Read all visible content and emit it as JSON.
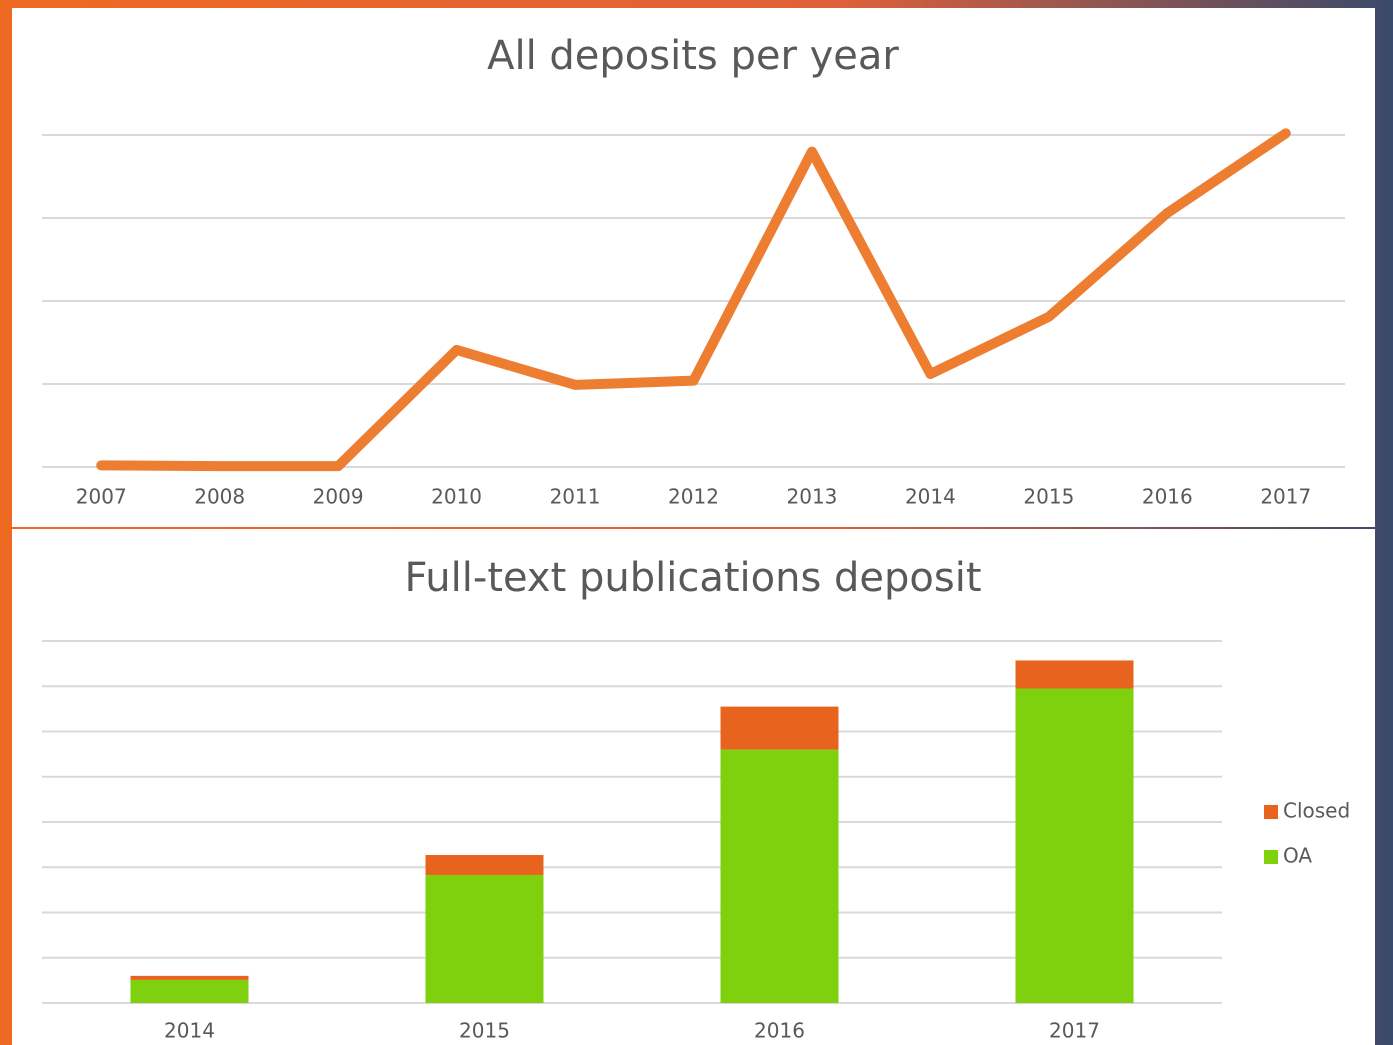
{
  "chart_data": [
    {
      "type": "line",
      "title": "All deposits per year",
      "categories": [
        "2007",
        "2008",
        "2009",
        "2010",
        "2011",
        "2012",
        "2013",
        "2014",
        "2015",
        "2016",
        "2017"
      ],
      "values": [
        0.02,
        0.01,
        0.01,
        1.41,
        0.99,
        1.04,
        3.8,
        1.12,
        1.81,
        3.06,
        4.02
      ],
      "color": "#ed7d31",
      "ylim": [
        0,
        4.1
      ],
      "gridlines": [
        0,
        1,
        2,
        3,
        4
      ]
    },
    {
      "type": "stacked-bar",
      "title": "Full-text publications deposit",
      "categories": [
        "2014",
        "2015",
        "2016",
        "2017"
      ],
      "series": [
        {
          "name": "OA",
          "color": "#7ed10c",
          "values": [
            0.51,
            2.83,
            5.6,
            6.95
          ]
        },
        {
          "name": "Closed",
          "color": "#e8641e",
          "values": [
            0.09,
            0.44,
            0.95,
            0.62
          ]
        }
      ],
      "ylim": [
        0,
        8
      ],
      "gridlines": [
        0,
        1,
        2,
        3,
        4,
        5,
        6,
        7,
        8
      ],
      "legend": "right"
    }
  ]
}
